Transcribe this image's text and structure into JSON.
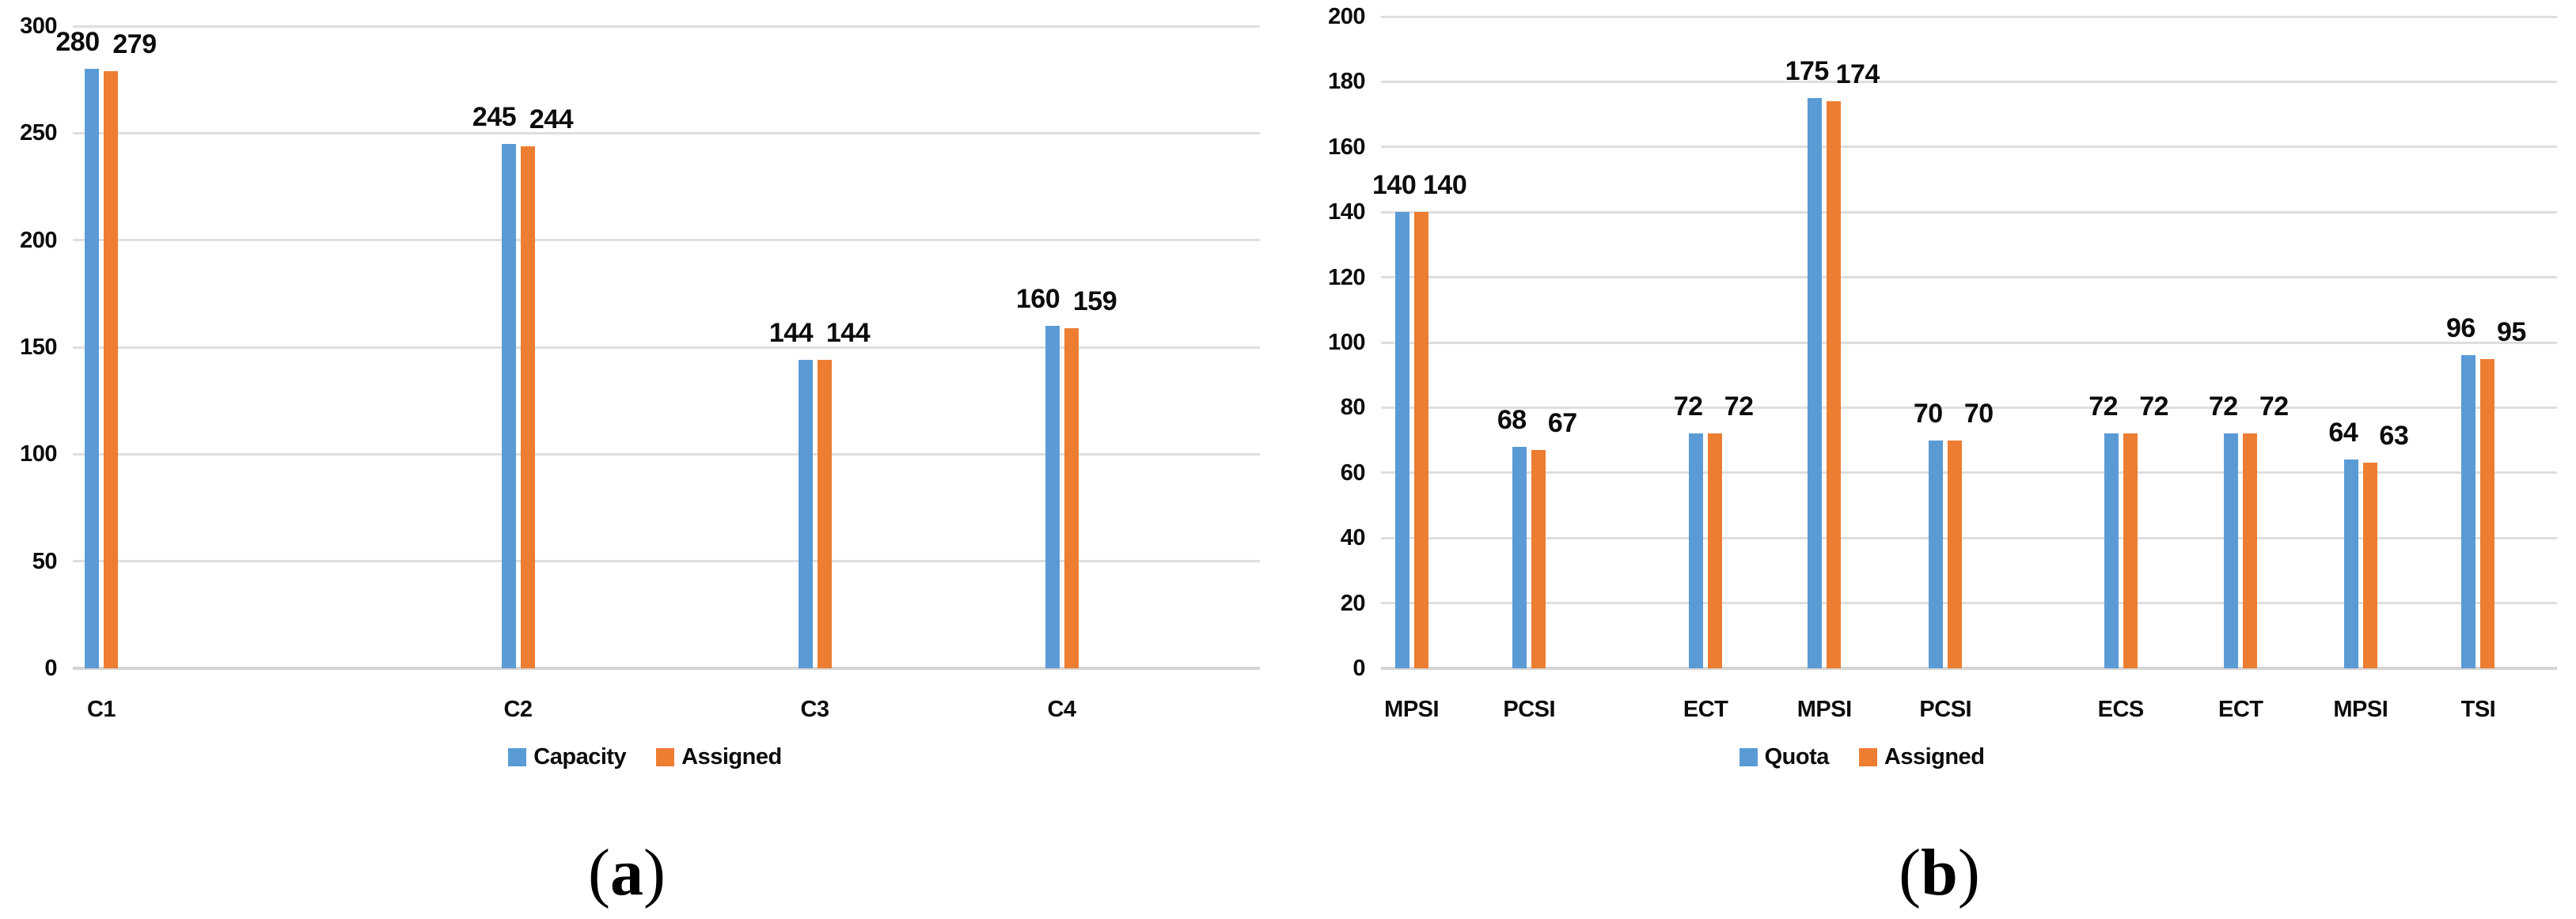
{
  "figure": {
    "background": "#FFFFFF",
    "text_color": "#0C0C0C",
    "gridline_color": "#DEDEDE",
    "axisline_color": "#D4D4D4"
  },
  "chart_data": [
    {
      "type": "bar",
      "panel": "a",
      "caption": {
        "open": "(",
        "letter": "a",
        "close": ")"
      },
      "categories": [
        "C1",
        "C2",
        "C3",
        "C4"
      ],
      "series": [
        {
          "name": "Capacity",
          "color": "#5B9BD5",
          "values": [
            280,
            245,
            144,
            160
          ]
        },
        {
          "name": "Assigned",
          "color": "#ED7D31",
          "values": [
            279,
            244,
            144,
            159
          ]
        }
      ],
      "ylim": [
        0,
        300
      ],
      "ytick_step": 50,
      "grid": true,
      "legend_position": "bottom-center",
      "x_centers_pct": [
        2.4,
        37.5,
        62.5,
        83.3
      ],
      "value_label_dx": [
        -18,
        30
      ]
    },
    {
      "type": "bar",
      "panel": "b",
      "caption": {
        "open": "(",
        "letter": "b",
        "close": ")"
      },
      "categories": [
        "MPSI",
        "PCSI",
        "ECT",
        "MPSI",
        "PCSI",
        "ECS",
        "ECT",
        "MPSI",
        "TSI"
      ],
      "series": [
        {
          "name": "Quota",
          "color": "#5B9BD5",
          "values": [
            140,
            68,
            72,
            175,
            70,
            72,
            72,
            64,
            96
          ]
        },
        {
          "name": "Assigned",
          "color": "#ED7D31",
          "values": [
            140,
            67,
            72,
            174,
            70,
            72,
            72,
            63,
            95
          ]
        }
      ],
      "ylim": [
        0,
        200
      ],
      "ytick_step": 20,
      "grid": true,
      "legend_position": "bottom-center",
      "x_centers_pct": [
        2.6,
        12.6,
        27.6,
        37.7,
        48.0,
        62.9,
        73.1,
        83.3,
        93.3
      ],
      "value_label_dx": [
        -10,
        30
      ]
    }
  ]
}
